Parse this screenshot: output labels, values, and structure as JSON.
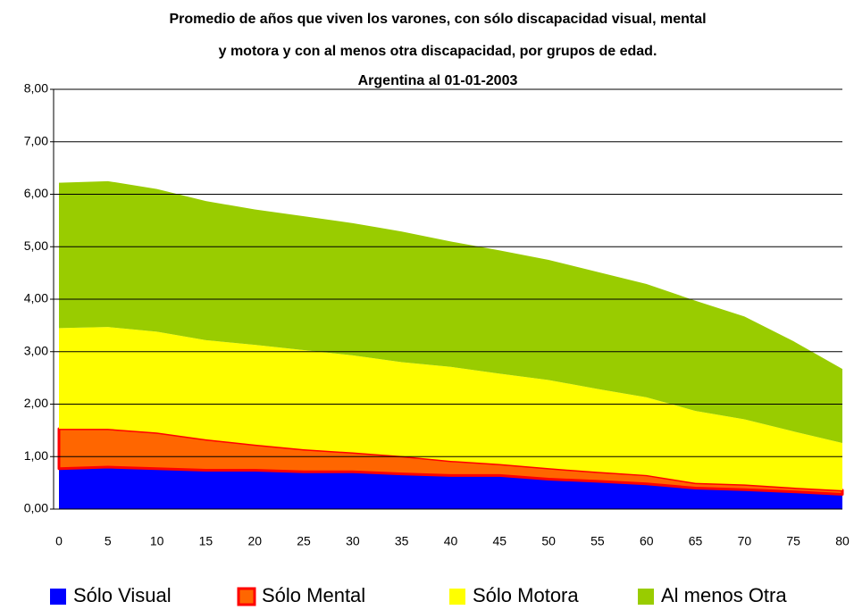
{
  "chart_data": {
    "type": "stacked_area",
    "title": [
      "Promedio de años que viven los varones, con sólo discapacidad visual, mental",
      "y motora y con al menos otra discapacidad, por grupos de edad.",
      "Argentina al 01-01-2003"
    ],
    "x": [
      0,
      5,
      10,
      15,
      20,
      25,
      30,
      35,
      40,
      45,
      50,
      55,
      60,
      65,
      70,
      75,
      80
    ],
    "xlim": [
      0,
      80
    ],
    "xticks": [
      0,
      5,
      10,
      15,
      20,
      25,
      30,
      35,
      40,
      45,
      50,
      55,
      60,
      65,
      70,
      75,
      80
    ],
    "ylim": [
      0,
      8
    ],
    "yticks": [
      {
        "value": 0,
        "label": "0,00"
      },
      {
        "value": 1,
        "label": "1,00"
      },
      {
        "value": 2,
        "label": "2,00"
      },
      {
        "value": 3,
        "label": "3,00"
      },
      {
        "value": 4,
        "label": "4,00"
      },
      {
        "value": 5,
        "label": "5,00"
      },
      {
        "value": 6,
        "label": "6,00"
      },
      {
        "value": 7,
        "label": "7,00"
      },
      {
        "value": 8,
        "label": "8,00"
      }
    ],
    "grid": true,
    "legend": "bottom",
    "series": [
      {
        "name": "Sólo Visual",
        "color": "#0000ff",
        "values": [
          0.77,
          0.8,
          0.77,
          0.74,
          0.74,
          0.71,
          0.71,
          0.67,
          0.64,
          0.64,
          0.57,
          0.53,
          0.48,
          0.4,
          0.37,
          0.33,
          0.28
        ]
      },
      {
        "name": "Sólo Mental",
        "color": "#ff6600",
        "stroke": "#ff0000",
        "values": [
          0.76,
          0.73,
          0.69,
          0.59,
          0.49,
          0.43,
          0.37,
          0.34,
          0.28,
          0.22,
          0.21,
          0.18,
          0.17,
          0.1,
          0.1,
          0.08,
          0.08
        ]
      },
      {
        "name": "Sólo Motora",
        "color": "#ffff00",
        "values": [
          1.92,
          1.94,
          1.92,
          1.89,
          1.9,
          1.89,
          1.85,
          1.79,
          1.79,
          1.72,
          1.68,
          1.58,
          1.48,
          1.37,
          1.24,
          1.07,
          0.9
        ]
      },
      {
        "name": "Al menos Otra",
        "color": "#99cc00",
        "values": [
          2.77,
          2.78,
          2.72,
          2.65,
          2.58,
          2.55,
          2.52,
          2.49,
          2.39,
          2.35,
          2.29,
          2.23,
          2.16,
          2.1,
          1.96,
          1.72,
          1.41
        ]
      }
    ]
  }
}
